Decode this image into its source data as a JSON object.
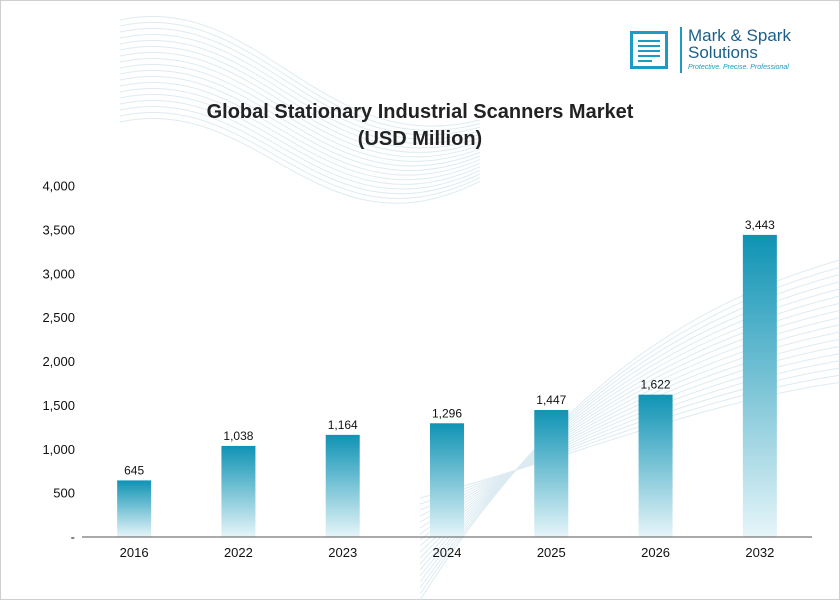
{
  "logo": {
    "name_line1": "Mark & Spark",
    "name_line2": "Solutions",
    "tagline": "Protective. Precise. Professional"
  },
  "colors": {
    "bar_top": "#0f93b4",
    "bar_bottom": "#e6f5f9",
    "brand": "#1e9bc2"
  },
  "chart_data": {
    "type": "bar",
    "title": "Global Stationary Industrial Scanners Market",
    "subtitle": "(USD Million)",
    "categories": [
      "2016",
      "2022",
      "2023",
      "2024",
      "2025",
      "2026",
      "2032"
    ],
    "values": [
      645,
      1038,
      1164,
      1296,
      1447,
      1622,
      3443
    ],
    "value_labels": [
      "645",
      "1,038",
      "1,164",
      "1,296",
      "1,447",
      "1,622",
      "3,443"
    ],
    "y_ticks": [
      0,
      500,
      1000,
      1500,
      2000,
      2500,
      3000,
      3500,
      4000
    ],
    "y_tick_labels": [
      "-",
      "500",
      "1,000",
      "1,500",
      "2,000",
      "2,500",
      "3,000",
      "3,500",
      "4,000"
    ],
    "ylim": [
      0,
      4000
    ],
    "grid": false,
    "legend": "none"
  }
}
